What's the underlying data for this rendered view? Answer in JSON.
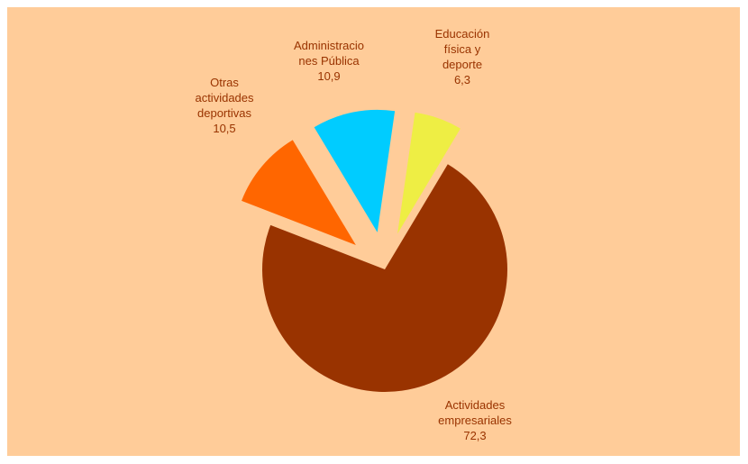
{
  "chart_data": {
    "type": "pie",
    "title": "",
    "units": "",
    "slices": [
      {
        "label_lines": [
          "Actividades",
          "empresariales"
        ],
        "value": 72.3,
        "value_text": "72,3",
        "color": "#993300",
        "exploded": false
      },
      {
        "label_lines": [
          "Otras",
          "actividades",
          "deportivas"
        ],
        "value": 10.5,
        "value_text": "10,5",
        "color": "#ff6600",
        "exploded": true
      },
      {
        "label_lines": [
          "Administracio",
          "nes Pública"
        ],
        "value": 10.9,
        "value_text": "10,9",
        "color": "#00ccff",
        "exploded": true
      },
      {
        "label_lines": [
          "Educación",
          "física y",
          "deporte"
        ],
        "value": 6.3,
        "value_text": "6,3",
        "color": "#eeee44",
        "exploded": true
      }
    ],
    "legend": "none",
    "background_color": "#ffcc99",
    "label_color": "#993300"
  }
}
